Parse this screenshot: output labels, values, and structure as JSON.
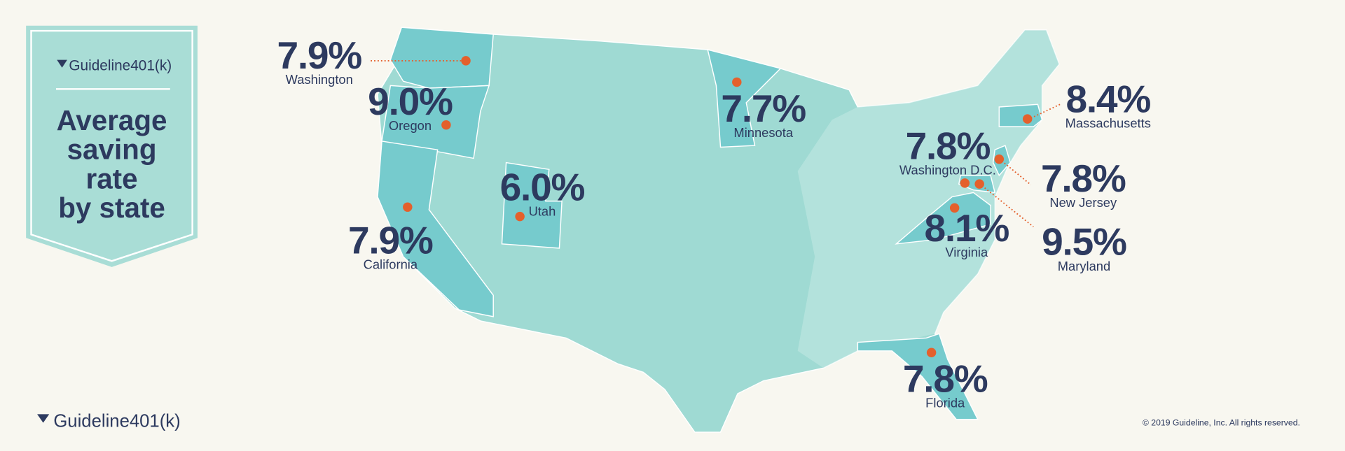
{
  "header": {
    "logo": "Guideline401(k)",
    "title": [
      "Average",
      "saving",
      "rate",
      "by state"
    ]
  },
  "states": [
    {
      "rate": "7.9%",
      "name": "Washington"
    },
    {
      "rate": "9.0%",
      "name": "Oregon"
    },
    {
      "rate": "7.9%",
      "name": "California"
    },
    {
      "rate": "6.0%",
      "name": "Utah"
    },
    {
      "rate": "7.7%",
      "name": "Minnesota"
    },
    {
      "rate": "8.4%",
      "name": "Massachusetts"
    },
    {
      "rate": "7.8%",
      "name": "Washington D.C."
    },
    {
      "rate": "7.8%",
      "name": "New Jersey"
    },
    {
      "rate": "8.1%",
      "name": "Virginia"
    },
    {
      "rate": "9.5%",
      "name": "Maryland"
    },
    {
      "rate": "7.8%",
      "name": "Florida"
    }
  ],
  "footer": {
    "logo": "Guideline401(k)",
    "copyright": "© 2019 Guideline, Inc. All rights reserved."
  }
}
